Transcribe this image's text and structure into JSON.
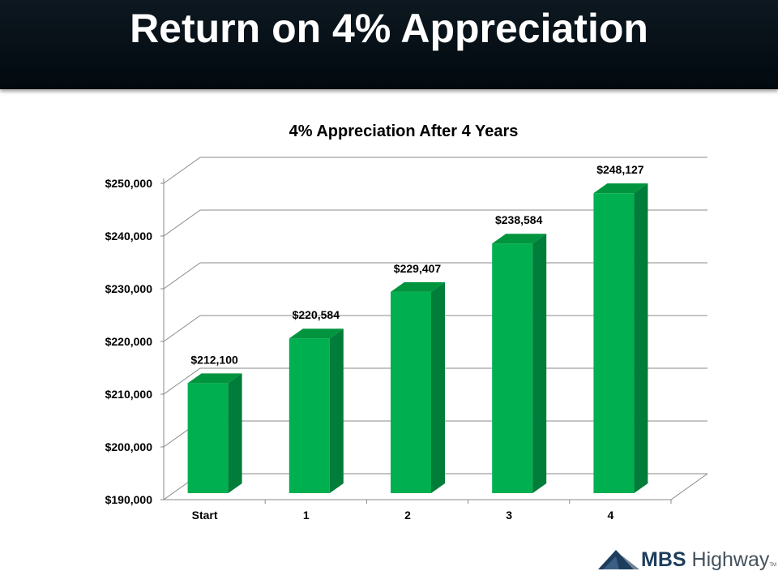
{
  "slide": {
    "title": "Return on 4% Appreciation"
  },
  "logo": {
    "brand_bold": "MBS",
    "brand_light": "Highway",
    "trademark": "TM"
  },
  "chart_data": {
    "type": "bar",
    "title": "4% Appreciation After 4 Years",
    "categories": [
      "Start",
      "1",
      "2",
      "3",
      "4"
    ],
    "values": [
      212100,
      220584,
      229407,
      238584,
      248127
    ],
    "data_labels": [
      "$212,100",
      "$220,584",
      "$229,407",
      "$238,584",
      "$248,127"
    ],
    "xlabel": "",
    "ylabel": "",
    "ylim": [
      190000,
      250000
    ],
    "yticks": [
      190000,
      200000,
      210000,
      220000,
      230000,
      240000,
      250000
    ],
    "ytick_labels": [
      "$190,000",
      "$200,000",
      "$210,000",
      "$220,000",
      "$230,000",
      "$240,000",
      "$250,000"
    ],
    "grid": true,
    "legend": "none",
    "style": "3d",
    "colors": {
      "bar_front": "#00b050",
      "bar_side": "#007d38",
      "bar_top": "#00943f",
      "grid": "#888888"
    }
  }
}
